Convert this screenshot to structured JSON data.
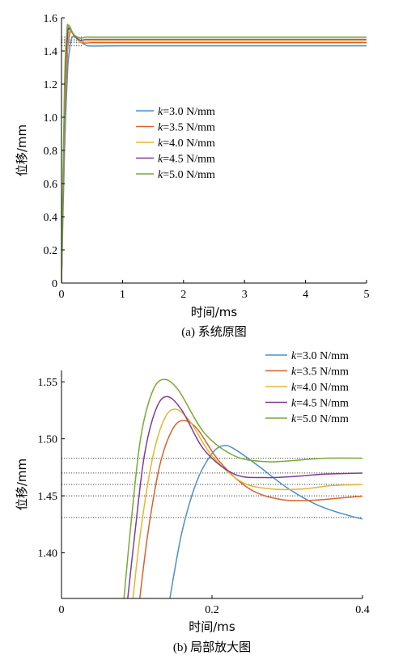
{
  "series_colors": [
    "#4a90c8",
    "#d9622b",
    "#e8b530",
    "#7e3d96",
    "#77ac30"
  ],
  "chart_data": [
    {
      "type": "line",
      "caption": "(a) 系统原图",
      "xlabel": "时间/ms",
      "ylabel": "位移/mm",
      "xlim": [
        0,
        5
      ],
      "ylim": [
        0,
        1.6
      ],
      "xticks": [
        0,
        1,
        2,
        3,
        4,
        5
      ],
      "xtick_labels": [
        "0",
        "1",
        "2",
        "3",
        "4",
        "5"
      ],
      "yticks": [
        0,
        0.2,
        0.4,
        0.6,
        0.8,
        1.0,
        1.2,
        1.4,
        1.6
      ],
      "ytick_labels": [
        "0",
        "0.2",
        "0.4",
        "0.6",
        "0.8",
        "1.0",
        "1.2",
        "1.4",
        "1.6"
      ],
      "grid": false,
      "legend_position": "center",
      "reference_lines": [
        1.431,
        1.45,
        1.46,
        1.47,
        1.483
      ],
      "series": [
        {
          "name": "k=3.0 N/mm",
          "k": "k",
          "rest": "=3.0 N/mm",
          "x": [
            0,
            0.05,
            0.1,
            0.13,
            0.16,
            0.2,
            0.22,
            0.3,
            0.4,
            0.5,
            1,
            2,
            3,
            4,
            5
          ],
          "y": [
            0,
            0.8,
            1.28,
            1.4,
            1.47,
            1.492,
            1.494,
            1.46,
            1.435,
            1.43,
            1.431,
            1.431,
            1.431,
            1.431,
            1.431
          ]
        },
        {
          "name": "k=3.5 N/mm",
          "k": "k",
          "rest": "=3.5 N/mm",
          "x": [
            0,
            0.05,
            0.1,
            0.13,
            0.16,
            0.22,
            0.3,
            0.4,
            0.5,
            1,
            2,
            3,
            4,
            5
          ],
          "y": [
            0,
            0.95,
            1.4,
            1.495,
            1.516,
            1.49,
            1.455,
            1.448,
            1.45,
            1.45,
            1.45,
            1.45,
            1.45,
            1.45
          ]
        },
        {
          "name": "k=4.0 N/mm",
          "k": "k",
          "rest": "=4.0 N/mm",
          "x": [
            0,
            0.05,
            0.1,
            0.12,
            0.15,
            0.2,
            0.3,
            0.4,
            0.5,
            1,
            2,
            3,
            4,
            5
          ],
          "y": [
            0,
            1.05,
            1.46,
            1.51,
            1.526,
            1.495,
            1.456,
            1.46,
            1.46,
            1.46,
            1.46,
            1.46,
            1.46,
            1.46
          ]
        },
        {
          "name": "k=4.5 N/mm",
          "k": "k",
          "rest": "=4.5 N/mm",
          "x": [
            0,
            0.05,
            0.1,
            0.12,
            0.14,
            0.2,
            0.3,
            0.4,
            0.5,
            1,
            2,
            3,
            4,
            5
          ],
          "y": [
            0,
            1.12,
            1.5,
            1.53,
            1.537,
            1.497,
            1.465,
            1.47,
            1.47,
            1.47,
            1.47,
            1.47,
            1.47,
            1.47
          ]
        },
        {
          "name": "k=5.0 N/mm",
          "k": "k",
          "rest": "=5.0 N/mm",
          "x": [
            0,
            0.05,
            0.09,
            0.11,
            0.13,
            0.2,
            0.3,
            0.4,
            0.5,
            1,
            2,
            3,
            4,
            5
          ],
          "y": [
            0,
            1.2,
            1.53,
            1.548,
            1.552,
            1.5,
            1.478,
            1.483,
            1.483,
            1.483,
            1.483,
            1.483,
            1.483,
            1.483
          ]
        }
      ]
    },
    {
      "type": "line",
      "caption": "(b) 局部放大图",
      "xlabel": "时间/ms",
      "ylabel": "位移/mm",
      "xlim": [
        0,
        0.4
      ],
      "ylim": [
        1.36,
        1.56
      ],
      "xticks": [
        0,
        0.2,
        0.4
      ],
      "xtick_labels": [
        "0",
        "0.2",
        "0.4"
      ],
      "yticks": [
        1.4,
        1.45,
        1.5,
        1.55
      ],
      "ytick_labels": [
        "1.40",
        "1.45",
        "1.50",
        "1.55"
      ],
      "grid": false,
      "legend_position": "top-right",
      "reference_lines": [
        1.431,
        1.45,
        1.46,
        1.47,
        1.483
      ],
      "series": [
        {
          "name": "k=3.0 N/mm",
          "k": "k",
          "rest": "=3.0 N/mm",
          "x": [
            0.144,
            0.16,
            0.18,
            0.2,
            0.215,
            0.23,
            0.26,
            0.3,
            0.34,
            0.38,
            0.405
          ],
          "y": [
            1.36,
            1.418,
            1.463,
            1.487,
            1.494,
            1.491,
            1.477,
            1.457,
            1.442,
            1.433,
            1.429
          ]
        },
        {
          "name": "k=3.5 N/mm",
          "k": "k",
          "rest": "=3.5 N/mm",
          "x": [
            0.104,
            0.115,
            0.13,
            0.145,
            0.16,
            0.18,
            0.21,
            0.25,
            0.29,
            0.33,
            0.37,
            0.405
          ],
          "y": [
            1.36,
            1.418,
            1.475,
            1.505,
            1.516,
            1.509,
            1.48,
            1.456,
            1.447,
            1.446,
            1.448,
            1.45
          ]
        },
        {
          "name": "k=4.0 N/mm",
          "k": "k",
          "rest": "=4.0 N/mm",
          "x": [
            0.095,
            0.105,
            0.12,
            0.135,
            0.15,
            0.17,
            0.2,
            0.24,
            0.28,
            0.32,
            0.36,
            0.405
          ],
          "y": [
            1.36,
            1.418,
            1.48,
            1.515,
            1.526,
            1.516,
            1.485,
            1.462,
            1.456,
            1.456,
            1.459,
            1.46
          ]
        },
        {
          "name": "k=4.5 N/mm",
          "k": "k",
          "rest": "=4.5 N/mm",
          "x": [
            0.088,
            0.098,
            0.11,
            0.125,
            0.14,
            0.16,
            0.19,
            0.23,
            0.27,
            0.31,
            0.35,
            0.405
          ],
          "y": [
            1.36,
            1.42,
            1.485,
            1.525,
            1.537,
            1.525,
            1.49,
            1.469,
            1.466,
            1.467,
            1.469,
            1.47
          ]
        },
        {
          "name": "k=5.0 N/mm",
          "k": "k",
          "rest": "=5.0 N/mm",
          "x": [
            0.083,
            0.093,
            0.105,
            0.12,
            0.135,
            0.155,
            0.19,
            0.23,
            0.27,
            0.31,
            0.35,
            0.405
          ],
          "y": [
            1.36,
            1.43,
            1.5,
            1.54,
            1.552,
            1.543,
            1.505,
            1.485,
            1.48,
            1.481,
            1.483,
            1.483
          ]
        }
      ]
    }
  ]
}
